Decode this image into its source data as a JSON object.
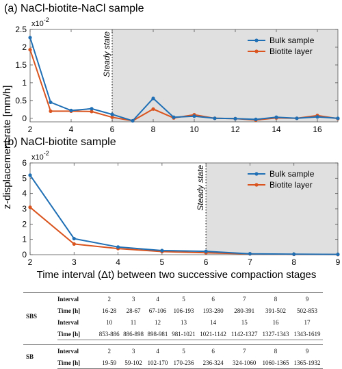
{
  "figure": {
    "ylabel": "z-displacement rate [mm/h]",
    "xlabel": "Time interval (Δt) between two successive compaction stages"
  },
  "chart_data": [
    {
      "type": "line",
      "panel": "a",
      "title": "(a) NaCl-biotite-NaCl sample",
      "multiplier": "x10",
      "multiplier_exp": "-2",
      "xlim": [
        2,
        17
      ],
      "ylim": [
        -0.1,
        2.5
      ],
      "x_ticks": [
        2,
        4,
        6,
        8,
        10,
        12,
        14,
        16
      ],
      "y_ticks": [
        0,
        0.5,
        1,
        1.5,
        2,
        2.5
      ],
      "y_tick_labels": [
        "0",
        "0.5",
        "1",
        "1.5",
        "2",
        "2.5"
      ],
      "grid": false,
      "legend_position": "top-right",
      "steady_state_label": "Steady state",
      "steady_state_x": 6,
      "x": [
        2,
        3,
        4,
        5,
        6,
        7,
        8,
        9,
        10,
        11,
        12,
        13,
        14,
        15,
        16,
        17
      ],
      "series": [
        {
          "name": "Bulk sample",
          "color": "#1f6fb5",
          "values": [
            2.27,
            0.45,
            0.22,
            0.27,
            0.11,
            -0.07,
            0.56,
            0.03,
            0.06,
            0.0,
            -0.01,
            -0.03,
            0.03,
            0.0,
            0.04,
            0.0
          ]
        },
        {
          "name": "Biotite layer",
          "color": "#d9541e",
          "values": [
            1.93,
            0.2,
            0.2,
            0.19,
            0.03,
            -0.07,
            0.26,
            0.01,
            0.1,
            0.0,
            -0.01,
            -0.05,
            0.01,
            0.0,
            0.08,
            -0.01
          ]
        }
      ]
    },
    {
      "type": "line",
      "panel": "b",
      "title": "(b) NaCl-biotite sample",
      "multiplier": "x10",
      "multiplier_exp": "-2",
      "xlim": [
        2,
        9
      ],
      "ylim": [
        0,
        6
      ],
      "x_ticks": [
        2,
        3,
        4,
        5,
        6,
        7,
        8,
        9
      ],
      "y_ticks": [
        0,
        1,
        2,
        3,
        4,
        5,
        6
      ],
      "y_tick_labels": [
        "0",
        "1",
        "2",
        "3",
        "4",
        "5",
        "6"
      ],
      "grid": false,
      "legend_position": "top-right",
      "steady_state_label": "Steady state",
      "steady_state_x": 6,
      "x": [
        2,
        3,
        4,
        5,
        6,
        7,
        8,
        9
      ],
      "series": [
        {
          "name": "Bulk sample",
          "color": "#1f6fb5",
          "values": [
            5.2,
            1.05,
            0.5,
            0.27,
            0.22,
            0.06,
            0.03,
            0.02
          ]
        },
        {
          "name": "Biotite layer",
          "color": "#d9541e",
          "values": [
            3.1,
            0.7,
            0.4,
            0.2,
            0.12,
            0.05,
            0.02,
            0.01
          ]
        }
      ]
    }
  ],
  "table": {
    "row_labels": {
      "interval": "Interval",
      "time": "Time [h]"
    },
    "groups": [
      {
        "name": "SBS",
        "blocks": [
          {
            "interval": [
              "2",
              "3",
              "4",
              "5",
              "6",
              "7",
              "8",
              "9"
            ],
            "time": [
              "16-28",
              "28-67",
              "67-106",
              "106-193",
              "193-280",
              "280-391",
              "391-502",
              "502-853"
            ]
          },
          {
            "interval": [
              "10",
              "11",
              "12",
              "13",
              "14",
              "15",
              "16",
              "17"
            ],
            "time": [
              "853-886",
              "886-898",
              "898-981",
              "981-1021",
              "1021-1142",
              "1142-1327",
              "1327-1343",
              "1343-1619"
            ]
          }
        ]
      },
      {
        "name": "SB",
        "blocks": [
          {
            "interval": [
              "2",
              "3",
              "4",
              "5",
              "6",
              "7",
              "8",
              "9"
            ],
            "time": [
              "19-59",
              "59-102",
              "102-170",
              "170-236",
              "236-324",
              "324-1060",
              "1060-1365",
              "1365-1932"
            ]
          }
        ]
      }
    ]
  }
}
